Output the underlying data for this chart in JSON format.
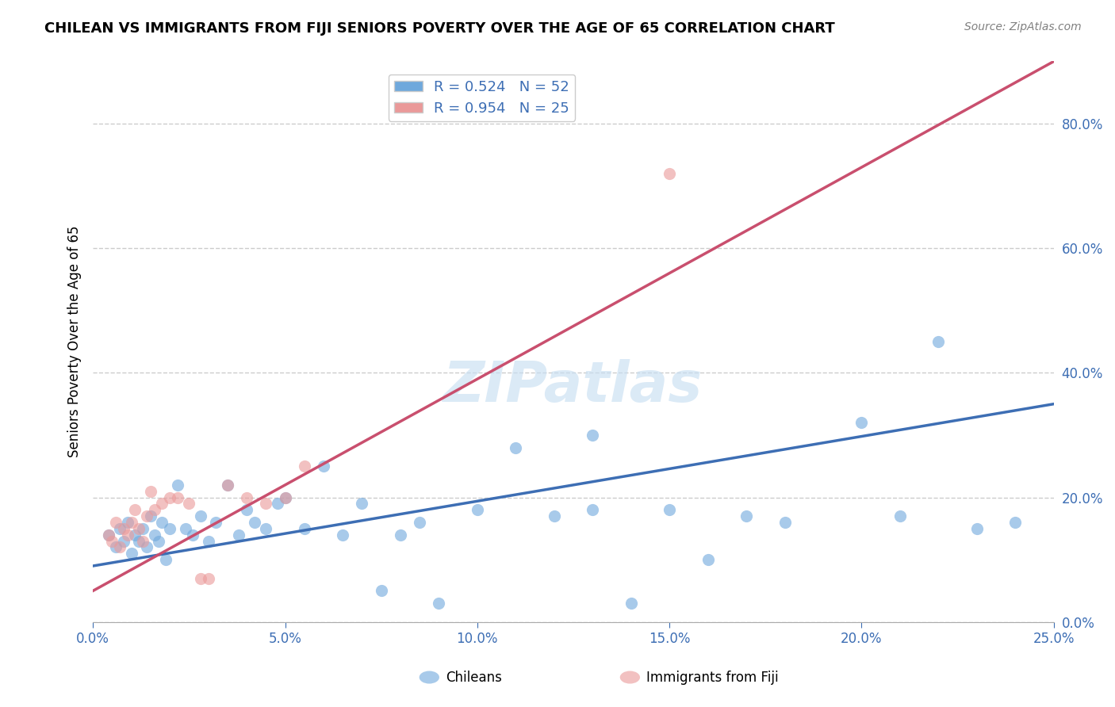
{
  "title": "CHILEAN VS IMMIGRANTS FROM FIJI SENIORS POVERTY OVER THE AGE OF 65 CORRELATION CHART",
  "source": "Source: ZipAtlas.com",
  "ylabel": "Seniors Poverty Over the Age of 65",
  "xlim": [
    0.0,
    0.25
  ],
  "ylim": [
    0.0,
    0.9
  ],
  "x_ticks": [
    0.0,
    0.05,
    0.1,
    0.15,
    0.2,
    0.25
  ],
  "y_ticks_right": [
    0.0,
    0.2,
    0.4,
    0.6,
    0.8
  ],
  "legend_r1": "R = 0.524   N = 52",
  "legend_r2": "R = 0.954   N = 25",
  "legend_label1": "Chileans",
  "legend_label2": "Immigrants from Fiji",
  "blue_color": "#6fa8dc",
  "pink_color": "#ea9999",
  "blue_line_color": "#3d6eb4",
  "pink_line_color": "#c94f6e",
  "blue_scatter_x": [
    0.004,
    0.006,
    0.007,
    0.008,
    0.009,
    0.01,
    0.011,
    0.012,
    0.013,
    0.014,
    0.015,
    0.016,
    0.017,
    0.018,
    0.019,
    0.02,
    0.022,
    0.024,
    0.026,
    0.028,
    0.03,
    0.032,
    0.035,
    0.038,
    0.04,
    0.042,
    0.045,
    0.048,
    0.05,
    0.055,
    0.06,
    0.065,
    0.07,
    0.075,
    0.08,
    0.085,
    0.09,
    0.1,
    0.11,
    0.12,
    0.13,
    0.14,
    0.15,
    0.16,
    0.17,
    0.18,
    0.2,
    0.21,
    0.22,
    0.23,
    0.24,
    0.13
  ],
  "blue_scatter_y": [
    0.14,
    0.12,
    0.15,
    0.13,
    0.16,
    0.11,
    0.14,
    0.13,
    0.15,
    0.12,
    0.17,
    0.14,
    0.13,
    0.16,
    0.1,
    0.15,
    0.22,
    0.15,
    0.14,
    0.17,
    0.13,
    0.16,
    0.22,
    0.14,
    0.18,
    0.16,
    0.15,
    0.19,
    0.2,
    0.15,
    0.25,
    0.14,
    0.19,
    0.05,
    0.14,
    0.16,
    0.03,
    0.18,
    0.28,
    0.17,
    0.18,
    0.03,
    0.18,
    0.1,
    0.17,
    0.16,
    0.32,
    0.17,
    0.45,
    0.15,
    0.16,
    0.3
  ],
  "pink_scatter_x": [
    0.004,
    0.005,
    0.006,
    0.007,
    0.008,
    0.009,
    0.01,
    0.011,
    0.012,
    0.013,
    0.014,
    0.015,
    0.016,
    0.018,
    0.02,
    0.022,
    0.025,
    0.028,
    0.03,
    0.035,
    0.04,
    0.045,
    0.05,
    0.055,
    0.15
  ],
  "pink_scatter_y": [
    0.14,
    0.13,
    0.16,
    0.12,
    0.15,
    0.14,
    0.16,
    0.18,
    0.15,
    0.13,
    0.17,
    0.21,
    0.18,
    0.19,
    0.2,
    0.2,
    0.19,
    0.07,
    0.07,
    0.22,
    0.2,
    0.19,
    0.2,
    0.25,
    0.72
  ],
  "blue_trendline_x": [
    0.0,
    0.25
  ],
  "blue_trendline_y": [
    0.09,
    0.35
  ],
  "pink_trendline_x": [
    0.0,
    0.25
  ],
  "pink_trendline_y": [
    0.05,
    0.9
  ],
  "watermark": "ZIPatlas",
  "background_color": "#ffffff",
  "grid_color": "#cccccc"
}
